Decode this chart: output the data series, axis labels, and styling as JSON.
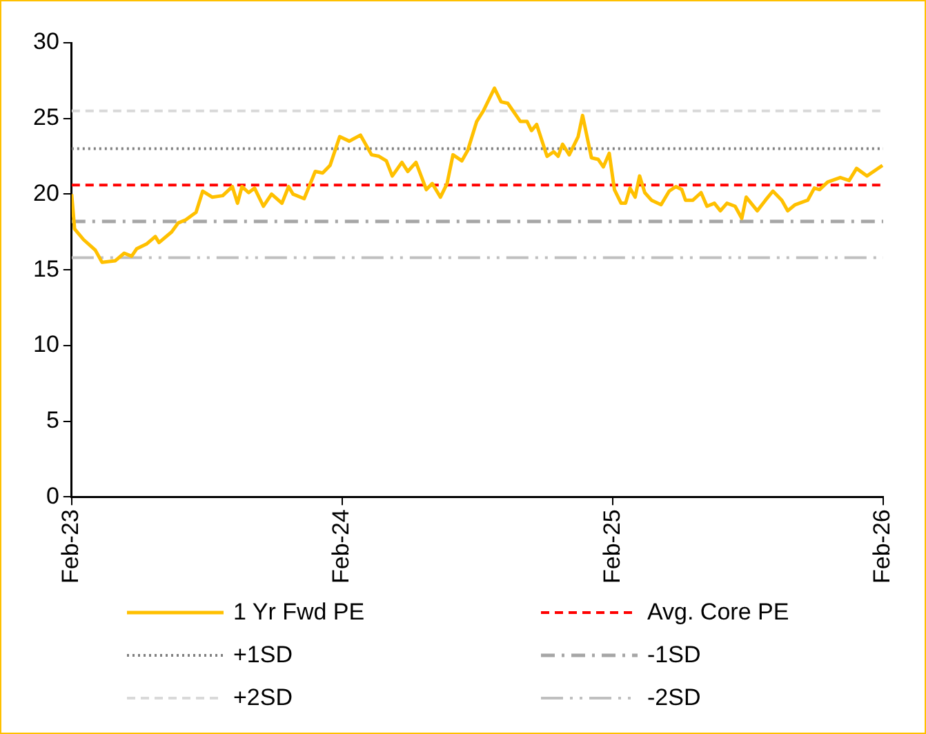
{
  "chart_data": {
    "type": "line",
    "xlim": [
      "2023-02",
      "2026-02"
    ],
    "xticks": [
      {
        "value": "2023-02",
        "label": "Feb-23"
      },
      {
        "value": "2024-02",
        "label": "Feb-24"
      },
      {
        "value": "2025-02",
        "label": "Feb-25"
      },
      {
        "value": "2026-02",
        "label": "Feb-26"
      }
    ],
    "ylim": [
      0,
      30
    ],
    "yticks": [
      0,
      5,
      10,
      15,
      20,
      25,
      30
    ],
    "grid": false,
    "legend": "bottom",
    "marker": "none",
    "x": [
      "2023-02-01",
      "2023-02-05",
      "2023-02-17",
      "2023-03-05",
      "2023-03-14",
      "2023-04-01",
      "2023-04-13",
      "2023-04-23",
      "2023-04-30",
      "2023-05-13",
      "2023-05-25",
      "2023-05-30",
      "2023-06-16",
      "2023-06-25",
      "2023-07-05",
      "2023-07-19",
      "2023-07-28",
      "2023-08-10",
      "2023-08-24",
      "2023-09-06",
      "2023-09-13",
      "2023-09-19",
      "2023-09-28",
      "2023-10-06",
      "2023-10-18",
      "2023-10-29",
      "2023-11-12",
      "2023-11-21",
      "2023-11-27",
      "2023-12-12",
      "2023-12-27",
      "2024-01-06",
      "2024-01-16",
      "2024-01-29",
      "2024-02-11",
      "2024-02-26",
      "2024-03-12",
      "2024-03-22",
      "2024-04-01",
      "2024-04-09",
      "2024-04-22",
      "2024-04-30",
      "2024-05-11",
      "2024-05-25",
      "2024-06-02",
      "2024-06-13",
      "2024-06-22",
      "2024-06-30",
      "2024-07-12",
      "2024-07-20",
      "2024-08-01",
      "2024-08-10",
      "2024-08-25",
      "2024-09-03",
      "2024-09-12",
      "2024-09-29",
      "2024-10-08",
      "2024-10-14",
      "2024-10-21",
      "2024-11-04",
      "2024-11-13",
      "2024-11-19",
      "2024-11-25",
      "2024-12-04",
      "2024-12-16",
      "2024-12-22",
      "2025-01-03",
      "2025-01-12",
      "2025-01-19",
      "2025-01-27",
      "2025-02-03",
      "2025-02-12",
      "2025-02-18",
      "2025-02-24",
      "2025-03-03",
      "2025-03-09",
      "2025-03-16",
      "2025-03-25",
      "2025-04-07",
      "2025-04-18",
      "2025-04-27",
      "2025-05-05",
      "2025-05-10",
      "2025-05-20",
      "2025-05-31",
      "2025-06-08",
      "2025-06-18",
      "2025-06-26",
      "2025-07-05",
      "2025-07-16",
      "2025-07-25",
      "2025-07-31",
      "2025-08-15",
      "2025-08-26",
      "2025-09-05",
      "2025-09-17",
      "2025-09-25",
      "2025-10-05",
      "2025-10-22",
      "2025-10-31",
      "2025-11-07",
      "2025-11-18",
      "2025-12-05",
      "2025-12-17",
      "2025-12-27",
      "2026-01-10",
      "2026-01-31"
    ],
    "series": [
      {
        "name": "1 Yr Fwd PE",
        "color": "#ffc000",
        "line_style": "solid",
        "values": [
          20.0,
          17.7,
          17.0,
          16.3,
          15.5,
          15.6,
          16.1,
          15.9,
          16.4,
          16.7,
          17.2,
          16.8,
          17.5,
          18.1,
          18.3,
          18.8,
          20.2,
          19.8,
          19.9,
          20.5,
          19.4,
          20.5,
          20.1,
          20.4,
          19.2,
          20.0,
          19.4,
          20.5,
          20.0,
          19.7,
          21.5,
          21.4,
          21.9,
          23.8,
          23.5,
          23.9,
          22.6,
          22.5,
          22.2,
          21.2,
          22.1,
          21.5,
          22.1,
          20.3,
          20.7,
          19.8,
          20.7,
          22.6,
          22.2,
          22.9,
          24.8,
          25.5,
          27.0,
          26.1,
          26.0,
          24.8,
          24.8,
          24.2,
          24.6,
          22.5,
          22.8,
          22.5,
          23.3,
          22.6,
          23.8,
          25.2,
          22.4,
          22.3,
          21.8,
          22.7,
          20.3,
          19.4,
          19.4,
          20.4,
          19.8,
          21.2,
          20.1,
          19.6,
          19.3,
          20.2,
          20.5,
          20.3,
          19.6,
          19.6,
          20.1,
          19.2,
          19.4,
          18.9,
          19.4,
          19.2,
          18.4,
          19.8,
          18.9,
          19.6,
          20.2,
          19.6,
          18.9,
          19.3,
          19.6,
          20.4,
          20.3,
          20.8,
          21.1,
          20.9,
          21.7,
          21.2,
          21.9
        ]
      },
      {
        "name": "Avg. Core PE",
        "color": "#ff0000",
        "line_style": "dashed",
        "x": [
          "2023-02-01",
          "2026-02-01"
        ],
        "values": [
          20.6,
          20.6
        ]
      },
      {
        "name": "+1SD",
        "color": "#808080",
        "line_style": "dotted",
        "x": [
          "2023-02-01",
          "2026-02-01"
        ],
        "values": [
          23.0,
          23.0
        ]
      },
      {
        "name": "-1SD",
        "color": "#a6a6a6",
        "line_style": "dashdot",
        "x": [
          "2023-02-01",
          "2026-02-01"
        ],
        "values": [
          18.2,
          18.2
        ]
      },
      {
        "name": "+2SD",
        "color": "#d9d9d9",
        "line_style": "dashed",
        "x": [
          "2023-02-01",
          "2026-02-01"
        ],
        "values": [
          25.5,
          25.5
        ]
      },
      {
        "name": "-2SD",
        "color": "#bfbfbf",
        "line_style": "dashdotdot",
        "x": [
          "2023-02-01",
          "2026-02-01"
        ],
        "values": [
          15.8,
          15.8
        ]
      }
    ]
  }
}
